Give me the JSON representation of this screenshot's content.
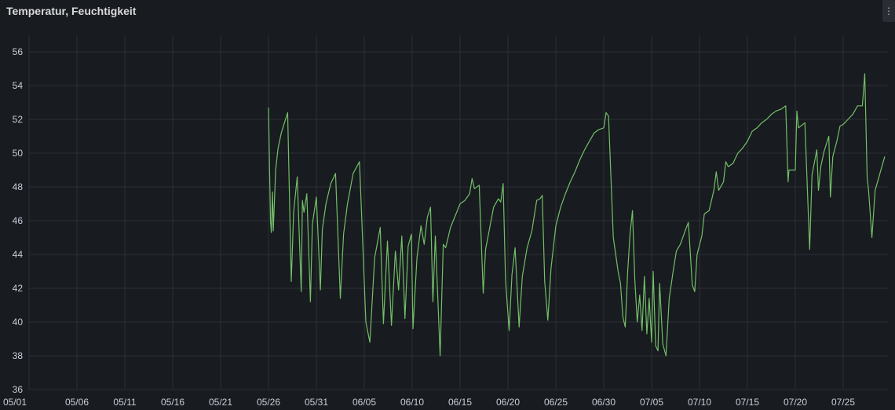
{
  "panel": {
    "title": "Temperatur, Feuchtigkeit",
    "menu_icon": "vertical-dots-icon"
  },
  "colors": {
    "background": "#181b1f",
    "grid": "#2c2f35",
    "series": "#73bf69",
    "text": "#ccccdc"
  },
  "chart_data": {
    "type": "line",
    "title": "Temperatur, Feuchtigkeit",
    "xlabel": "",
    "ylabel": "",
    "x_axis": "date",
    "xlim": [
      "05/01",
      "07/30"
    ],
    "ylim": [
      36,
      57
    ],
    "grid": true,
    "legend": "none",
    "x_ticks": [
      "05/01",
      "05/06",
      "05/11",
      "05/16",
      "05/21",
      "05/26",
      "05/31",
      "06/05",
      "06/10",
      "06/15",
      "06/20",
      "06/25",
      "06/30",
      "07/05",
      "07/10",
      "07/15",
      "07/20",
      "07/25"
    ],
    "y_ticks": [
      36,
      38,
      40,
      42,
      44,
      46,
      48,
      50,
      52,
      54,
      56
    ],
    "series": [
      {
        "name": "",
        "color": "#73bf69",
        "points": [
          [
            "05/26 00:00",
            52.7
          ],
          [
            "05/26 05:00",
            46.0
          ],
          [
            "05/26 07:00",
            45.3
          ],
          [
            "05/26 10:00",
            47.7
          ],
          [
            "05/26 12:00",
            45.4
          ],
          [
            "05/26 18:00",
            49.0
          ],
          [
            "05/27 00:00",
            50.3
          ],
          [
            "05/27 08:00",
            51.2
          ],
          [
            "05/27 16:00",
            51.8
          ],
          [
            "05/28 00:00",
            52.4
          ],
          [
            "05/28 09:00",
            42.4
          ],
          [
            "05/28 15:00",
            46.5
          ],
          [
            "05/29 00:00",
            48.6
          ],
          [
            "05/29 10:00",
            41.8
          ],
          [
            "05/29 13:00",
            47.2
          ],
          [
            "05/29 17:00",
            46.5
          ],
          [
            "05/30 00:00",
            47.6
          ],
          [
            "05/30 09:00",
            41.2
          ],
          [
            "05/30 14:00",
            45.8
          ],
          [
            "05/31 00:00",
            47.4
          ],
          [
            "05/31 10:00",
            41.9
          ],
          [
            "05/31 15:00",
            45.5
          ],
          [
            "06/01 00:00",
            47.0
          ],
          [
            "06/01 12:00",
            48.2
          ],
          [
            "06/02 00:00",
            48.8
          ],
          [
            "06/02 12:00",
            41.4
          ],
          [
            "06/02 20:00",
            45.2
          ],
          [
            "06/03 06:00",
            47.0
          ],
          [
            "06/03 20:00",
            48.8
          ],
          [
            "06/04 12:00",
            49.5
          ],
          [
            "06/05 04:00",
            40.0
          ],
          [
            "06/05 14:00",
            38.8
          ],
          [
            "06/06 02:00",
            43.8
          ],
          [
            "06/06 16:00",
            45.6
          ],
          [
            "06/07 00:00",
            39.9
          ],
          [
            "06/07 10:00",
            44.8
          ],
          [
            "06/07 20:00",
            39.8
          ],
          [
            "06/08 06:00",
            44.2
          ],
          [
            "06/08 14:00",
            41.9
          ],
          [
            "06/08 22:00",
            45.1
          ],
          [
            "06/09 06:00",
            40.2
          ],
          [
            "06/09 14:00",
            44.5
          ],
          [
            "06/09 22:00",
            45.2
          ],
          [
            "06/10 02:00",
            39.6
          ],
          [
            "06/10 12:00",
            43.8
          ],
          [
            "06/10 22:00",
            45.7
          ],
          [
            "06/11 06:00",
            44.6
          ],
          [
            "06/11 14:00",
            46.2
          ],
          [
            "06/11 22:00",
            46.8
          ],
          [
            "06/12 04:00",
            41.2
          ],
          [
            "06/12 10:00",
            45.1
          ],
          [
            "06/12 22:00",
            38.0
          ],
          [
            "06/13 06:00",
            44.6
          ],
          [
            "06/13 12:00",
            44.4
          ],
          [
            "06/14 00:00",
            45.6
          ],
          [
            "06/14 12:00",
            46.3
          ],
          [
            "06/15 00:00",
            47.0
          ],
          [
            "06/15 12:00",
            47.2
          ],
          [
            "06/16 00:00",
            47.6
          ],
          [
            "06/16 06:00",
            48.5
          ],
          [
            "06/16 12:00",
            47.9
          ],
          [
            "06/17 00:00",
            48.1
          ],
          [
            "06/17 10:00",
            41.7
          ],
          [
            "06/17 16:00",
            44.3
          ],
          [
            "06/18 12:00",
            46.8
          ],
          [
            "06/19 00:00",
            47.3
          ],
          [
            "06/19 06:00",
            47.1
          ],
          [
            "06/19 12:00",
            48.2
          ],
          [
            "06/19 18:00",
            42.5
          ],
          [
            "06/20 03:00",
            39.5
          ],
          [
            "06/20 10:00",
            42.8
          ],
          [
            "06/20 18:00",
            44.4
          ],
          [
            "06/21 04:00",
            39.7
          ],
          [
            "06/21 12:00",
            42.7
          ],
          [
            "06/22 00:00",
            44.4
          ],
          [
            "06/22 12:00",
            45.4
          ],
          [
            "06/23 00:00",
            47.2
          ],
          [
            "06/23 08:00",
            47.3
          ],
          [
            "06/23 14:00",
            47.5
          ],
          [
            "06/23 20:00",
            42.4
          ],
          [
            "06/24 04:00",
            40.1
          ],
          [
            "06/24 12:00",
            43.2
          ],
          [
            "06/25 00:00",
            45.7
          ],
          [
            "06/25 12:00",
            46.8
          ],
          [
            "06/26 00:00",
            47.6
          ],
          [
            "06/26 12:00",
            48.3
          ],
          [
            "06/27 00:00",
            48.9
          ],
          [
            "06/27 12:00",
            49.6
          ],
          [
            "06/28 00:00",
            50.2
          ],
          [
            "06/28 12:00",
            50.7
          ],
          [
            "06/29 00:00",
            51.2
          ],
          [
            "06/29 12:00",
            51.4
          ],
          [
            "06/30 00:00",
            51.5
          ],
          [
            "06/30 06:00",
            52.4
          ],
          [
            "06/30 12:00",
            52.2
          ],
          [
            "07/01 00:00",
            45.0
          ],
          [
            "07/01 12:00",
            43.0
          ],
          [
            "07/01 18:00",
            42.3
          ],
          [
            "07/02 00:00",
            40.3
          ],
          [
            "07/02 06:00",
            39.7
          ],
          [
            "07/02 12:00",
            43.0
          ],
          [
            "07/02 18:00",
            45.2
          ],
          [
            "07/03 00:00",
            46.6
          ],
          [
            "07/03 06:00",
            42.5
          ],
          [
            "07/03 12:00",
            40.0
          ],
          [
            "07/03 18:00",
            41.6
          ],
          [
            "07/04 00:00",
            39.5
          ],
          [
            "07/04 06:00",
            42.7
          ],
          [
            "07/04 12:00",
            39.3
          ],
          [
            "07/04 18:00",
            41.4
          ],
          [
            "07/05 00:00",
            38.8
          ],
          [
            "07/05 04:00",
            43.0
          ],
          [
            "07/05 10:00",
            38.6
          ],
          [
            "07/05 16:00",
            38.3
          ],
          [
            "07/05 20:00",
            42.3
          ],
          [
            "07/06 04:00",
            38.7
          ],
          [
            "07/06 12:00",
            38.0
          ],
          [
            "07/06 20:00",
            41.4
          ],
          [
            "07/07 06:00",
            43.0
          ],
          [
            "07/07 14:00",
            44.2
          ],
          [
            "07/08 00:00",
            44.6
          ],
          [
            "07/08 12:00",
            45.4
          ],
          [
            "07/08 20:00",
            45.9
          ],
          [
            "07/09 06:00",
            42.2
          ],
          [
            "07/09 12:00",
            41.8
          ],
          [
            "07/09 18:00",
            44.0
          ],
          [
            "07/10 06:00",
            45.1
          ],
          [
            "07/10 12:00",
            46.4
          ],
          [
            "07/11 00:00",
            46.6
          ],
          [
            "07/11 12:00",
            47.8
          ],
          [
            "07/11 18:00",
            48.9
          ],
          [
            "07/12 00:00",
            47.8
          ],
          [
            "07/12 12:00",
            48.3
          ],
          [
            "07/12 18:00",
            49.5
          ],
          [
            "07/13 00:00",
            49.2
          ],
          [
            "07/13 12:00",
            49.4
          ],
          [
            "07/14 00:00",
            50.0
          ],
          [
            "07/14 12:00",
            50.3
          ],
          [
            "07/15 00:00",
            50.7
          ],
          [
            "07/15 12:00",
            51.3
          ],
          [
            "07/16 00:00",
            51.5
          ],
          [
            "07/16 12:00",
            51.8
          ],
          [
            "07/17 00:00",
            52.0
          ],
          [
            "07/17 12:00",
            52.3
          ],
          [
            "07/18 00:00",
            52.5
          ],
          [
            "07/18 12:00",
            52.6
          ],
          [
            "07/19 00:00",
            52.8
          ],
          [
            "07/19 06:00",
            48.3
          ],
          [
            "07/19 08:00",
            49.0
          ],
          [
            "07/20 00:00",
            49.0
          ],
          [
            "07/20 04:00",
            52.5
          ],
          [
            "07/20 08:00",
            51.5
          ],
          [
            "07/21 00:00",
            51.8
          ],
          [
            "07/21 06:00",
            48.0
          ],
          [
            "07/21 12:00",
            44.3
          ],
          [
            "07/21 18:00",
            48.7
          ],
          [
            "07/22 06:00",
            50.2
          ],
          [
            "07/22 10:00",
            47.8
          ],
          [
            "07/22 16:00",
            49.2
          ],
          [
            "07/23 00:00",
            50.1
          ],
          [
            "07/23 12:00",
            51.0
          ],
          [
            "07/23 16:00",
            47.4
          ],
          [
            "07/23 22:00",
            49.8
          ],
          [
            "07/24 08:00",
            50.7
          ],
          [
            "07/24 16:00",
            51.6
          ],
          [
            "07/25 00:00",
            51.7
          ],
          [
            "07/25 12:00",
            52.0
          ],
          [
            "07/26 00:00",
            52.3
          ],
          [
            "07/26 12:00",
            52.8
          ],
          [
            "07/27 00:00",
            52.8
          ],
          [
            "07/27 06:00",
            54.7
          ],
          [
            "07/27 12:00",
            48.6
          ],
          [
            "07/27 16:00",
            47.7
          ],
          [
            "07/28 00:00",
            45.0
          ],
          [
            "07/28 08:00",
            47.8
          ],
          [
            "07/28 20:00",
            48.8
          ],
          [
            "07/29 08:00",
            49.8
          ]
        ]
      }
    ]
  }
}
